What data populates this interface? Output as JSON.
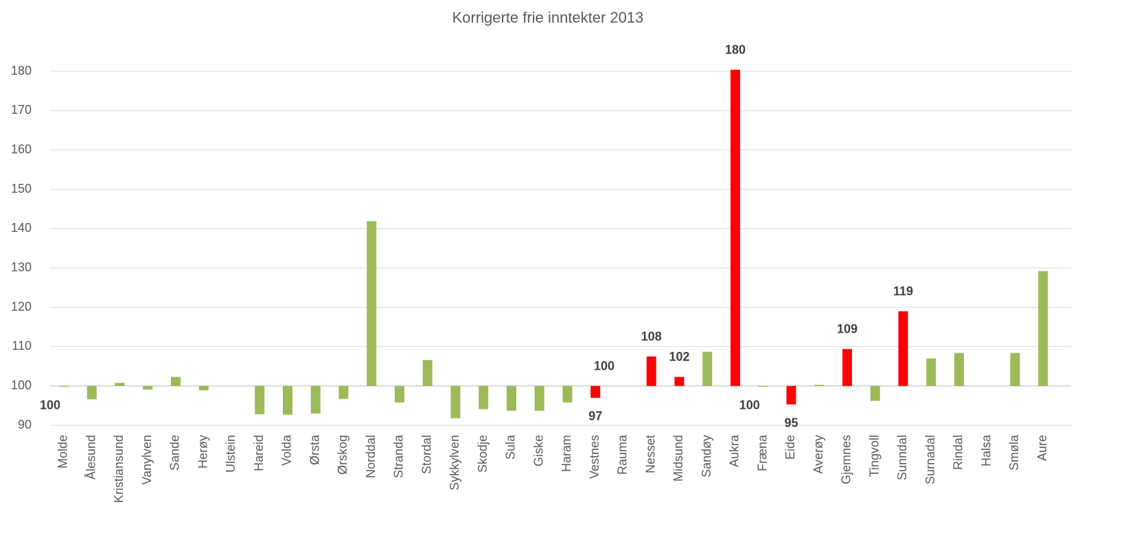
{
  "chart_data": {
    "type": "bar",
    "title": "Korrigerte frie inntekter 2013",
    "categories": [
      "Molde",
      "Ålesund",
      "Kristiansund",
      "Vanylven",
      "Sande",
      "Herøy",
      "Ulstein",
      "Hareid",
      "Volda",
      "Ørsta",
      "Ørskog",
      "Norddal",
      "Stranda",
      "Stordal",
      "Sykkylven",
      "Skodje",
      "Sula",
      "Giske",
      "Haram",
      "Vestnes",
      "Rauma",
      "Nesset",
      "Midsund",
      "Sandøy",
      "Aukra",
      "Fræna",
      "Eide",
      "Averøy",
      "Gjemnes",
      "Tingvoll",
      "Sunndal",
      "Surnadal",
      "Rindal",
      "Halsa",
      "Smøla",
      "Aure"
    ],
    "values": [
      99.8,
      96.6,
      100.8,
      99.1,
      102.3,
      98.9,
      100,
      92.8,
      92.7,
      93.0,
      96.7,
      141.9,
      95.8,
      106.6,
      91.8,
      94.1,
      93.7,
      93.7,
      95.8,
      97.0,
      100,
      107.5,
      102.3,
      108.7,
      180.4,
      99.8,
      95.3,
      100.3,
      109.4,
      96.2,
      119.0,
      107.0,
      108.4,
      100,
      108.4,
      129.2
    ],
    "value_labels": [
      "100",
      null,
      null,
      null,
      null,
      null,
      null,
      null,
      null,
      null,
      null,
      null,
      null,
      null,
      null,
      null,
      null,
      null,
      null,
      "97",
      "100",
      "108",
      "102",
      null,
      "180",
      "100",
      "95",
      null,
      "109",
      null,
      "119",
      null,
      null,
      null,
      null,
      null
    ],
    "colors": [
      "#9bbb59",
      "#9bbb59",
      "#9bbb59",
      "#9bbb59",
      "#9bbb59",
      "#9bbb59",
      "#9bbb59",
      "#9bbb59",
      "#9bbb59",
      "#9bbb59",
      "#9bbb59",
      "#9bbb59",
      "#9bbb59",
      "#9bbb59",
      "#9bbb59",
      "#9bbb59",
      "#9bbb59",
      "#9bbb59",
      "#9bbb59",
      "#ff0000",
      "#ff0000",
      "#ff0000",
      "#ff0000",
      "#9bbb59",
      "#ff0000",
      "#9bbb59",
      "#ff0000",
      "#9bbb59",
      "#ff0000",
      "#9bbb59",
      "#ff0000",
      "#9bbb59",
      "#9bbb59",
      "#9bbb59",
      "#9bbb59",
      "#9bbb59"
    ],
    "baseline": 100,
    "ylim": [
      90,
      180
    ],
    "yticks": [
      90,
      100,
      110,
      120,
      130,
      140,
      150,
      160,
      170,
      180
    ],
    "grid": true
  }
}
